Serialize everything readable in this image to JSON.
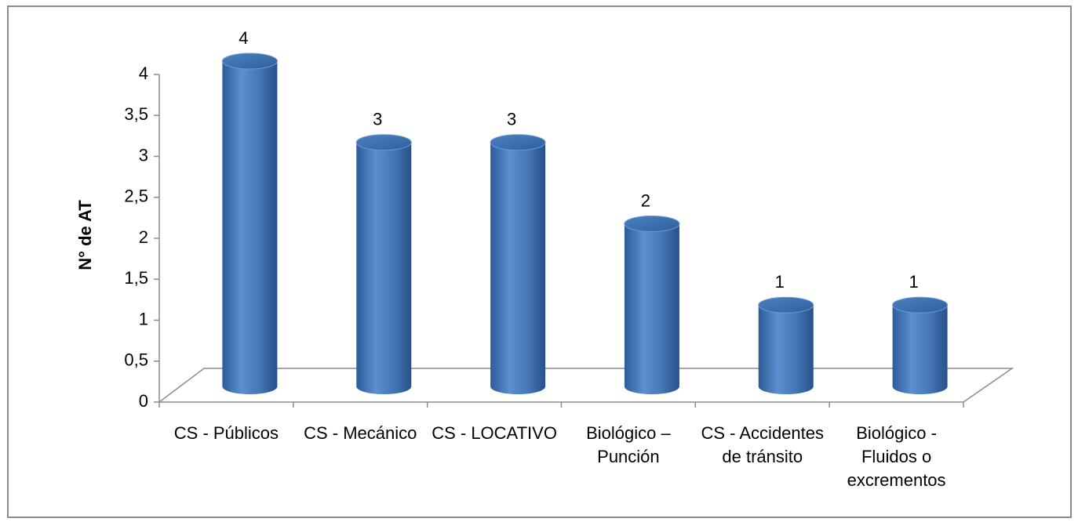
{
  "chart_data": {
    "type": "bar3d",
    "y_label": "N° de AT",
    "categories": [
      "CS - Públicos",
      "CS - Mecánico",
      "CS - LOCATIVO",
      "Biológico – Punción",
      "CS - Accidentes de tránsito",
      "Biológico - Fluidos o excrementos"
    ],
    "values": [
      4,
      3,
      3,
      2,
      1,
      1
    ],
    "color": "#4a7ebb",
    "ylim": [
      0,
      4
    ],
    "yticks": [
      0,
      {
        "value": 0.5,
        "label": "0,5"
      },
      1,
      {
        "value": 1.5,
        "label": "1,5"
      },
      2,
      {
        "value": 2.5,
        "label": "2,5"
      },
      3,
      {
        "value": 3.5,
        "label": "3,5"
      },
      4
    ],
    "grid": false
  }
}
